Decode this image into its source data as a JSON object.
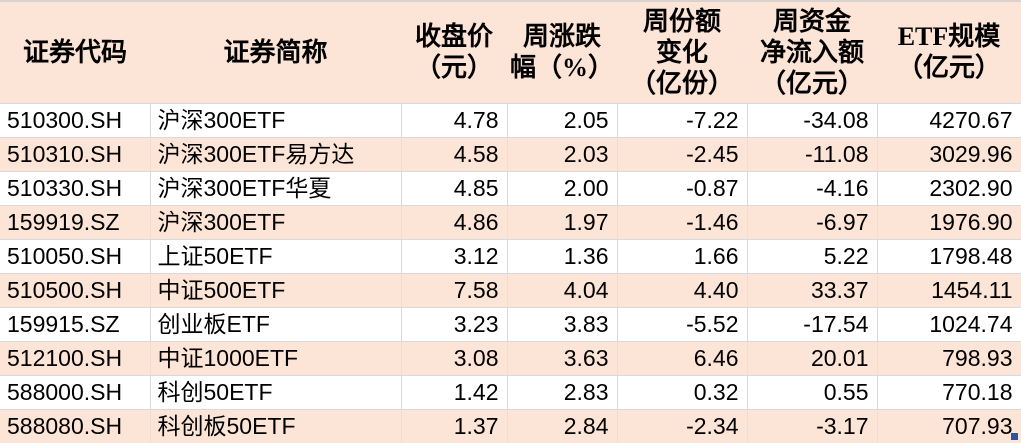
{
  "chart_data": {
    "type": "table",
    "title": "",
    "columns": [
      {
        "key": "code",
        "label": "证券代码"
      },
      {
        "key": "name",
        "label": "证券简称"
      },
      {
        "key": "close",
        "label": "收盘价\n（元）"
      },
      {
        "key": "chg",
        "label": "周涨跌\n幅（%）"
      },
      {
        "key": "share",
        "label": "周份额\n变化\n（亿份）"
      },
      {
        "key": "inflow",
        "label": "周资金\n净流入额\n（亿元）"
      },
      {
        "key": "scale",
        "label": "ETF规模\n（亿元）"
      }
    ],
    "rows": [
      [
        "510300.SH",
        "沪深300ETF",
        "4.78",
        "2.05",
        "-7.22",
        "-34.08",
        "4270.67"
      ],
      [
        "510310.SH",
        "沪深300ETF易方达",
        "4.58",
        "2.03",
        "-2.45",
        "-11.08",
        "3029.96"
      ],
      [
        "510330.SH",
        "沪深300ETF华夏",
        "4.85",
        "2.00",
        "-0.87",
        "-4.16",
        "2302.90"
      ],
      [
        "159919.SZ",
        "沪深300ETF",
        "4.86",
        "1.97",
        "-1.46",
        "-6.97",
        "1976.90"
      ],
      [
        "510050.SH",
        "上证50ETF",
        "3.12",
        "1.36",
        "1.66",
        "5.22",
        "1798.48"
      ],
      [
        "510500.SH",
        "中证500ETF",
        "7.58",
        "4.04",
        "4.40",
        "33.37",
        "1454.11"
      ],
      [
        "159915.SZ",
        "创业板ETF",
        "3.23",
        "3.83",
        "-5.52",
        "-17.54",
        "1024.74"
      ],
      [
        "512100.SH",
        "中证1000ETF",
        "3.08",
        "3.63",
        "6.46",
        "20.01",
        "798.93"
      ],
      [
        "588000.SH",
        "科创50ETF",
        "1.42",
        "2.83",
        "0.32",
        "0.55",
        "770.18"
      ],
      [
        "588080.SH",
        "科创板50ETF",
        "1.37",
        "2.84",
        "-2.34",
        "-3.17",
        "707.93"
      ]
    ]
  },
  "colors": {
    "header_bg": "#fce4d6",
    "row_alt_bg": "#fce4d6",
    "grid_line": "#d9d9d9",
    "grid_line_alt": "#f2ddcf",
    "text": "#000000",
    "selection_handle": "#2f5597",
    "top_edge": "#d8d3ce"
  }
}
